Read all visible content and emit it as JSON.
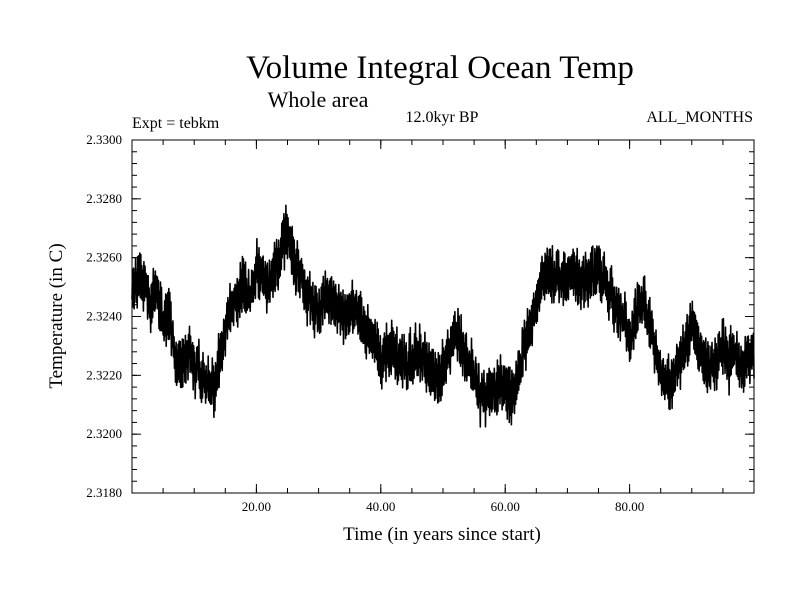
{
  "chart_data": {
    "type": "line",
    "title": "Volume Integral Ocean Temp",
    "subtitle": "Whole area",
    "experiment_label": "Expt = tebkm",
    "period_label": "12.0kyr BP",
    "months_label": "ALL_MONTHS",
    "xlabel": "Time (in years since start)",
    "ylabel": "Temperature (in C)",
    "xlim": [
      0,
      100
    ],
    "ylim": [
      2.318,
      2.33
    ],
    "x_ticks": [
      20,
      40,
      60,
      80
    ],
    "x_tick_labels": [
      "20.00",
      "40.00",
      "60.00",
      "80.00"
    ],
    "y_ticks": [
      2.318,
      2.32,
      2.322,
      2.324,
      2.326,
      2.328,
      2.33
    ],
    "y_tick_labels": [
      "2.3180",
      "2.3200",
      "2.3220",
      "2.3240",
      "2.3260",
      "2.3280",
      "2.3300"
    ],
    "grid": false,
    "series": [
      {
        "name": "Volume integral ocean temperature",
        "color": "#000000",
        "x": [
          0,
          1,
          2,
          3,
          4,
          5,
          6,
          7,
          8,
          9,
          10,
          11,
          12,
          13,
          14,
          15,
          16,
          17,
          18,
          19,
          20,
          21,
          22,
          23,
          24,
          25,
          26,
          27,
          28,
          29,
          30,
          31,
          32,
          33,
          34,
          35,
          36,
          37,
          38,
          39,
          40,
          41,
          42,
          43,
          44,
          45,
          46,
          47,
          48,
          49,
          50,
          51,
          52,
          53,
          54,
          55,
          56,
          57,
          58,
          59,
          60,
          61,
          62,
          63,
          64,
          65,
          66,
          67,
          68,
          69,
          70,
          71,
          72,
          73,
          74,
          75,
          76,
          77,
          78,
          79,
          80,
          81,
          82,
          83,
          84,
          85,
          86,
          87,
          88,
          89,
          90,
          91,
          92,
          93,
          94,
          95,
          96,
          97,
          98,
          99,
          100
        ],
        "values": [
          2.3248,
          2.3255,
          2.3252,
          2.3244,
          2.3249,
          2.3238,
          2.3241,
          2.3227,
          2.3224,
          2.3228,
          2.3223,
          2.3222,
          2.3219,
          2.3214,
          2.3225,
          2.3236,
          2.3243,
          2.3248,
          2.3251,
          2.3246,
          2.3255,
          2.3253,
          2.3249,
          2.3256,
          2.3262,
          2.3268,
          2.3259,
          2.3255,
          2.3249,
          2.3245,
          2.3243,
          2.3247,
          2.3246,
          2.3243,
          2.324,
          2.3245,
          2.3242,
          2.3238,
          2.3233,
          2.3231,
          2.3226,
          2.323,
          2.3228,
          2.3225,
          2.3221,
          2.3226,
          2.3228,
          2.3224,
          2.3221,
          2.3217,
          2.3223,
          2.3227,
          2.3236,
          2.3231,
          2.3224,
          2.3219,
          2.3214,
          2.3212,
          2.3216,
          2.3218,
          2.3215,
          2.3213,
          2.3218,
          2.3228,
          2.3237,
          2.3245,
          2.3254,
          2.3256,
          2.3253,
          2.3252,
          2.3254,
          2.3255,
          2.3252,
          2.3253,
          2.3254,
          2.3254,
          2.3251,
          2.3248,
          2.3243,
          2.3238,
          2.3231,
          2.3241,
          2.3246,
          2.3241,
          2.3228,
          2.3221,
          2.3215,
          2.3218,
          2.3226,
          2.3231,
          2.3236,
          2.3229,
          2.3224,
          2.3222,
          2.3226,
          2.3231,
          2.3225,
          2.3227,
          2.3222,
          2.3226,
          2.3228
        ],
        "interannual_variability": 0.0009
      }
    ]
  }
}
